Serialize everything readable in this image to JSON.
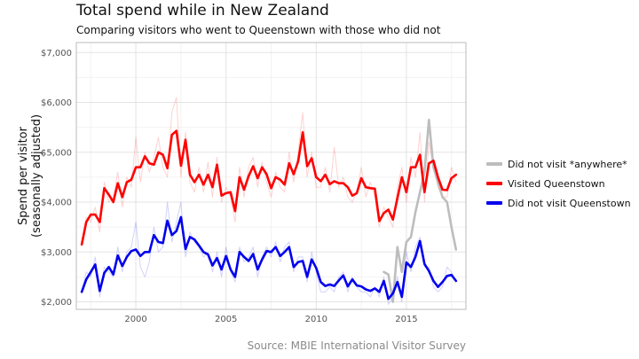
{
  "header": {
    "title": "Total spend while in New Zealand",
    "subtitle": "Comparing visitors who went to Queenstown with those who did not"
  },
  "caption": "Source: MBIE International Visitor Survey",
  "chart_data": {
    "type": "line",
    "title": "Total spend while in New Zealand",
    "subtitle": "Comparing visitors who went to Queenstown with those who did not",
    "xlabel": "",
    "ylabel": "Spend per visitor\n(seasonally adjusted)",
    "ylabel_lines": [
      "Spend per visitor",
      "(seasonally adjusted)"
    ],
    "xlim": [
      1996.7,
      2018.3
    ],
    "ylim": [
      1850,
      7200
    ],
    "x_ticks": [
      2000,
      2005,
      2010,
      2015
    ],
    "x_tick_labels": [
      "2000",
      "2005",
      "2010",
      "2015"
    ],
    "y_ticks": [
      2000,
      3000,
      4000,
      5000,
      6000,
      7000
    ],
    "y_tick_labels": [
      "$2,000",
      "$3,000",
      "$4,000",
      "$5,000",
      "$6,000",
      "$7,000"
    ],
    "grid": true,
    "legend_position": "right",
    "x_start": 1997.0,
    "x_step": 0.25,
    "series": [
      {
        "name": "Did not visit *anywhere*",
        "color": "#bdbdbd",
        "start_x": 2013.75,
        "trend": [
          2600,
          2550,
          2000,
          3100,
          2600,
          3200,
          3300,
          3800,
          4200,
          4600,
          5650,
          4700,
          4400,
          4100,
          4000,
          3500,
          3050
        ],
        "raw": [
          2600,
          2550,
          2000,
          3100,
          2600,
          3200,
          3300,
          3800,
          4200,
          4600,
          5650,
          4700,
          4400,
          4100,
          4000,
          3500,
          3050
        ]
      },
      {
        "name": "Visited Queenstown",
        "color": "#ff0000",
        "start_x": 1997.0,
        "trend": [
          3150,
          3600,
          3750,
          3750,
          3600,
          4280,
          4150,
          4000,
          4380,
          4100,
          4400,
          4450,
          4700,
          4700,
          4920,
          4780,
          4750,
          5000,
          4950,
          4680,
          5350,
          5430,
          4730,
          5250,
          4550,
          4400,
          4550,
          4350,
          4550,
          4300,
          4750,
          4130,
          4180,
          4200,
          3820,
          4500,
          4250,
          4520,
          4720,
          4480,
          4700,
          4560,
          4280,
          4500,
          4450,
          4350,
          4780,
          4560,
          4820,
          5400,
          4720,
          4880,
          4500,
          4420,
          4550,
          4360,
          4420,
          4380,
          4380,
          4300,
          4130,
          4180,
          4480,
          4300,
          4280,
          4270,
          3620,
          3780,
          3850,
          3650,
          4080,
          4500,
          4200,
          4700,
          4700,
          4950,
          4200,
          4780,
          4830,
          4500,
          4250,
          4240,
          4480,
          4550
        ],
        "raw": [
          3150,
          3700,
          3600,
          3900,
          3400,
          4400,
          4000,
          4100,
          4600,
          3900,
          4500,
          4300,
          5300,
          4400,
          5000,
          4600,
          4900,
          5300,
          4700,
          4500,
          5800,
          6100,
          4500,
          5400,
          4400,
          4200,
          4700,
          4200,
          4800,
          4100,
          4900,
          4000,
          4300,
          4100,
          3600,
          4700,
          4100,
          4700,
          4900,
          4300,
          4800,
          4400,
          4100,
          4600,
          4300,
          4200,
          5000,
          4400,
          5000,
          5800,
          4500,
          5000,
          4300,
          4300,
          4700,
          4200,
          5100,
          4300,
          4500,
          4100,
          4000,
          4200,
          4700,
          4100,
          4400,
          4100,
          3500,
          3900,
          3700,
          3500,
          4300,
          4700,
          4000,
          4900,
          4500,
          5400,
          4000,
          5200,
          4700,
          4300,
          4100,
          4100,
          4700,
          4400
        ]
      },
      {
        "name": "Did not visit Queenstown",
        "color": "#0000ee",
        "start_x": 1997.0,
        "trend": [
          2200,
          2450,
          2600,
          2750,
          2220,
          2580,
          2700,
          2550,
          2930,
          2720,
          2900,
          3020,
          3050,
          2920,
          3000,
          3000,
          3340,
          3200,
          3180,
          3630,
          3340,
          3420,
          3700,
          3060,
          3300,
          3250,
          3130,
          3000,
          2950,
          2730,
          2880,
          2650,
          2920,
          2650,
          2500,
          3000,
          2900,
          2820,
          2960,
          2650,
          2850,
          3020,
          3000,
          3100,
          2920,
          3000,
          3100,
          2700,
          2800,
          2820,
          2500,
          2850,
          2680,
          2400,
          2320,
          2350,
          2320,
          2430,
          2530,
          2310,
          2450,
          2330,
          2310,
          2250,
          2220,
          2270,
          2200,
          2420,
          2060,
          2170,
          2400,
          2100,
          2790,
          2700,
          2900,
          3220,
          2760,
          2620,
          2420,
          2300,
          2400,
          2520,
          2540,
          2420
        ],
        "raw": [
          2200,
          2600,
          2500,
          2900,
          2100,
          2700,
          2600,
          2500,
          3100,
          2600,
          3000,
          3100,
          3600,
          2700,
          2500,
          2800,
          3500,
          3000,
          3100,
          4000,
          3200,
          3600,
          4000,
          2900,
          3400,
          3200,
          3100,
          2900,
          3000,
          2600,
          3000,
          2500,
          3100,
          2600,
          2400,
          3100,
          2800,
          2900,
          3100,
          2500,
          2900,
          3100,
          2900,
          3200,
          2800,
          3100,
          3200,
          2600,
          2900,
          2900,
          2400,
          3000,
          2600,
          2200,
          2200,
          2300,
          2200,
          2500,
          2600,
          2200,
          2500,
          2300,
          2200,
          2200,
          2100,
          2300,
          2100,
          2500,
          1950,
          2100,
          2500,
          2000,
          3000,
          2600,
          3100,
          3300,
          2700,
          2700,
          2300,
          2200,
          2300,
          2700,
          2600,
          2400
        ]
      }
    ]
  },
  "legend": {
    "items": [
      {
        "label": "Did not visit *anywhere*",
        "color": "#bdbdbd"
      },
      {
        "label": "Visited Queenstown",
        "color": "#ff0000"
      },
      {
        "label": "Did not visit Queenstown",
        "color": "#0000ee"
      }
    ]
  }
}
